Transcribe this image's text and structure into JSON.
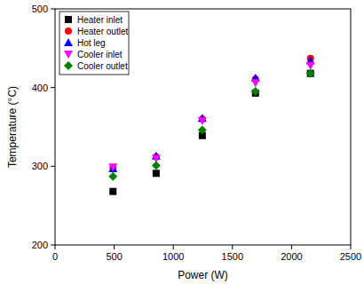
{
  "chart_data": {
    "type": "scatter",
    "x_label": "Power (W)",
    "y_label": "Temperature (°C)",
    "x": [
      490,
      855,
      1245,
      1695,
      2160
    ],
    "series": [
      {
        "name": "Heater inlet",
        "color": "#000000",
        "marker": "square",
        "values": [
          268,
          291,
          339,
          393,
          418
        ]
      },
      {
        "name": "Heater outlet",
        "color": "#ff0000",
        "marker": "circle",
        "values": [
          298,
          312,
          360,
          411,
          437
        ]
      },
      {
        "name": "Hot leg",
        "color": "#0000ff",
        "marker": "triangle-up",
        "values": [
          297,
          313,
          361,
          412,
          434
        ]
      },
      {
        "name": "Cooler inlet",
        "color": "#ff00ff",
        "marker": "triangle-down",
        "values": [
          299,
          310,
          358,
          406,
          428
        ]
      },
      {
        "name": "Cooler outlet",
        "color": "#008000",
        "marker": "diamond",
        "values": [
          287,
          301,
          346,
          395,
          418
        ]
      }
    ],
    "xlim": [
      0,
      2500
    ],
    "xticks": [
      0,
      500,
      1000,
      1500,
      2000,
      2500
    ],
    "ylim": [
      200,
      500
    ],
    "yticks": [
      200,
      300,
      400,
      500
    ],
    "grid": false,
    "legend": "upper left"
  }
}
